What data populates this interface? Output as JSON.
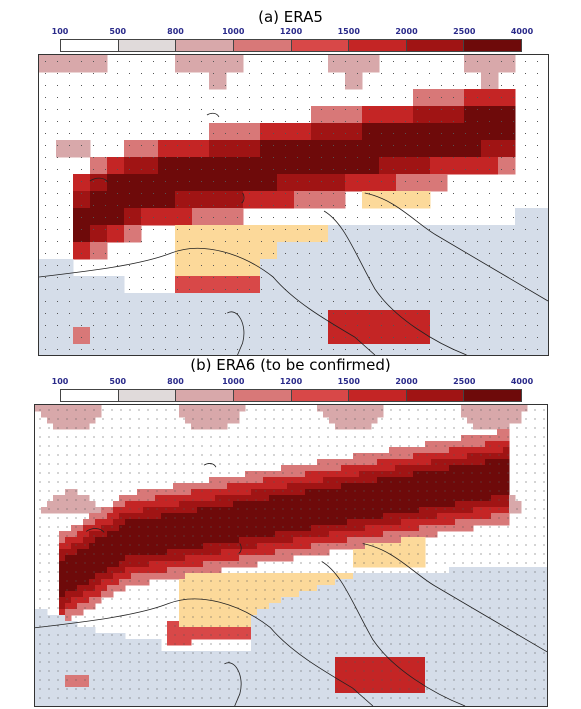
{
  "panels": [
    {
      "title": "(a) ERA5"
    },
    {
      "title": "(b) ERA6 (to be confirmed)"
    }
  ],
  "colorbar": {
    "labels": [
      "100",
      "500",
      "800",
      "1000",
      "1200",
      "1500",
      "2000",
      "2500",
      "4000"
    ],
    "colors": [
      "#ffffff",
      "#e0dada",
      "#d8a8aa",
      "#d87878",
      "#d84848",
      "#c42525",
      "#a01414",
      "#6e0a0a"
    ]
  },
  "map_colors": {
    "sea": "#d5dde9",
    "lowland": "#fcd99a",
    "coast": "#222222",
    "dots": "#555555"
  }
}
